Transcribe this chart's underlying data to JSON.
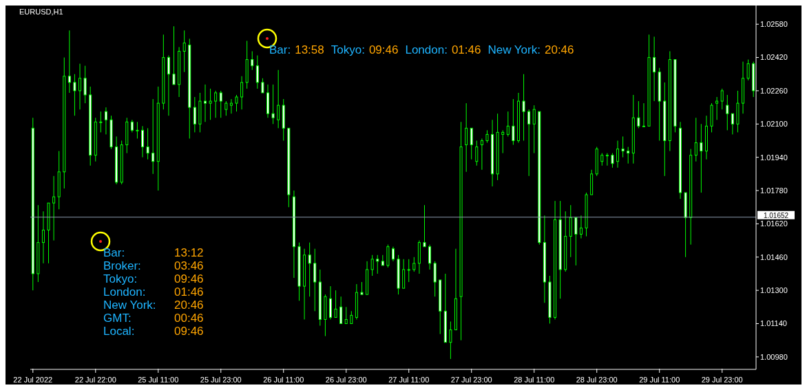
{
  "chart_data": {
    "type": "candlestick",
    "title": "EURUSD,H1",
    "color": "#00ff00",
    "categories": [
      "22 Jul 2022",
      null,
      null,
      null,
      null,
      null,
      null,
      null,
      null,
      null,
      null,
      null,
      "22 Jul 22:00",
      null,
      null,
      null,
      null,
      null,
      null,
      null,
      null,
      null,
      null,
      null,
      "25 Jul 11:00",
      null,
      null,
      null,
      null,
      null,
      null,
      null,
      null,
      null,
      null,
      null,
      "25 Jul 23:00",
      null,
      null,
      null,
      null,
      null,
      null,
      null,
      null,
      null,
      null,
      null,
      "26 Jul 11:00",
      null,
      null,
      null,
      null,
      null,
      null,
      null,
      null,
      null,
      null,
      null,
      "26 Jul 23:00",
      null,
      null,
      null,
      null,
      null,
      null,
      null,
      null,
      null,
      null,
      null,
      "27 Jul 11:00",
      null,
      null,
      null,
      null,
      null,
      null,
      null,
      null,
      null,
      null,
      null,
      "27 Jul 23:00",
      null,
      null,
      null,
      null,
      null,
      null,
      null,
      null,
      null,
      null,
      null,
      "28 Jul 11:00",
      null,
      null,
      null,
      null,
      null,
      null,
      null,
      null,
      null,
      null,
      null,
      "28 Jul 23:00",
      null,
      null,
      null,
      null,
      null,
      null,
      null,
      null,
      null,
      null,
      null,
      "29 Jul 11:00",
      null,
      null,
      null,
      null,
      null,
      null,
      null,
      null,
      null,
      null,
      null,
      "29 Jul 23:00",
      null,
      null,
      null,
      null,
      null,
      null
    ],
    "ohlc": [
      [
        1.0208,
        1.0213,
        1.013,
        1.0138
      ],
      [
        1.0138,
        1.0171,
        1.0134,
        1.0153
      ],
      [
        1.0153,
        1.0168,
        1.0143,
        1.0159
      ],
      [
        1.0159,
        1.0172,
        1.0143,
        1.0172
      ],
      [
        1.0172,
        1.0185,
        1.0154,
        1.0175
      ],
      [
        1.0175,
        1.0197,
        1.0169,
        1.0187
      ],
      [
        1.0187,
        1.0242,
        1.0179,
        1.0233
      ],
      [
        1.0233,
        1.0255,
        1.0225,
        1.023
      ],
      [
        1.023,
        1.0234,
        1.0214,
        1.0226
      ],
      [
        1.0226,
        1.0239,
        1.0217,
        1.0232
      ],
      [
        1.0232,
        1.0238,
        1.022,
        1.0224
      ],
      [
        1.0224,
        1.0228,
        1.019,
        1.0195
      ],
      [
        1.0195,
        1.0213,
        1.0192,
        1.0211
      ],
      [
        1.0211,
        1.0216,
        1.0206,
        1.0211
      ],
      [
        1.0216,
        1.0218,
        1.0205,
        1.0212
      ],
      [
        1.0212,
        1.0214,
        1.0198,
        1.0199
      ],
      [
        1.0199,
        1.0204,
        1.0181,
        1.0182
      ],
      [
        1.0182,
        1.0202,
        1.0181,
        1.02
      ],
      [
        1.02,
        1.0213,
        1.0196,
        1.0211
      ],
      [
        1.0211,
        1.0212,
        1.0206,
        1.0207
      ],
      [
        1.0207,
        1.0211,
        1.0203,
        1.0207
      ],
      [
        1.0207,
        1.0209,
        1.0194,
        1.0199
      ],
      [
        1.0199,
        1.0208,
        1.0193,
        1.0196
      ],
      [
        1.0196,
        1.0222,
        1.0186,
        1.0192
      ],
      [
        1.0192,
        1.0228,
        1.0178,
        1.022
      ],
      [
        1.022,
        1.0253,
        1.0217,
        1.0242
      ],
      [
        1.0242,
        1.0243,
        1.0214,
        1.0234
      ],
      [
        1.0234,
        1.0257,
        1.0229,
        1.0229
      ],
      [
        1.0229,
        1.0247,
        1.0223,
        1.0245
      ],
      [
        1.0245,
        1.0255,
        1.0235,
        1.0249
      ],
      [
        1.0248,
        1.0251,
        1.0203,
        1.0218
      ],
      [
        1.0218,
        1.0223,
        1.0206,
        1.021
      ],
      [
        1.021,
        1.0225,
        1.0206,
        1.0221
      ],
      [
        1.0221,
        1.0229,
        1.0211,
        1.022
      ],
      [
        1.022,
        1.0227,
        1.0212,
        1.0221
      ],
      [
        1.0221,
        1.0226,
        1.0213,
        1.0225
      ],
      [
        1.0225,
        1.0226,
        1.0213,
        1.0221
      ],
      [
        1.0217,
        1.0221,
        1.0214,
        1.022
      ],
      [
        1.0219,
        1.0222,
        1.0215,
        1.022
      ],
      [
        1.022,
        1.0224,
        1.0216,
        1.0223
      ],
      [
        1.0223,
        1.0233,
        1.0217,
        1.023
      ],
      [
        1.023,
        1.025,
        1.0227,
        1.0241
      ],
      [
        1.0241,
        1.0245,
        1.0236,
        1.0238
      ],
      [
        1.0238,
        1.0243,
        1.0227,
        1.023
      ],
      [
        1.023,
        1.0232,
        1.0225,
        1.0225
      ],
      [
        1.0225,
        1.0229,
        1.0213,
        1.0215
      ],
      [
        1.0215,
        1.0229,
        1.021,
        1.0213
      ],
      [
        1.0212,
        1.0236,
        1.0208,
        1.0219
      ],
      [
        1.0219,
        1.0222,
        1.0202,
        1.0208
      ],
      [
        1.0208,
        1.0208,
        1.017,
        1.0176
      ],
      [
        1.0175,
        1.0178,
        1.0136,
        1.0151
      ],
      [
        1.0151,
        1.0153,
        1.0125,
        1.0132
      ],
      [
        1.0132,
        1.015,
        1.0116,
        1.0147
      ],
      [
        1.0147,
        1.0153,
        1.0127,
        1.0143
      ],
      [
        1.0143,
        1.015,
        1.012,
        1.0134
      ],
      [
        1.0134,
        1.014,
        1.0113,
        1.0116
      ],
      [
        1.0116,
        1.0128,
        1.0108,
        1.0127
      ],
      [
        1.0126,
        1.0132,
        1.0116,
        1.0117
      ],
      [
        1.0117,
        1.013,
        1.0117,
        1.0121
      ],
      [
        1.0122,
        1.0127,
        1.0114,
        1.0114
      ],
      [
        1.0114,
        1.0122,
        1.0114,
        1.0116
      ],
      [
        1.0114,
        1.012,
        1.0114,
        1.0118
      ],
      [
        1.0117,
        1.0133,
        1.0116,
        1.0129
      ],
      [
        1.0129,
        1.0134,
        1.0128,
        1.0128
      ],
      [
        1.0128,
        1.0144,
        1.0128,
        1.014
      ],
      [
        1.014,
        1.0147,
        1.0137,
        1.0145
      ],
      [
        1.0145,
        1.0147,
        1.0138,
        1.0144
      ],
      [
        1.0144,
        1.0147,
        1.0142,
        1.0142
      ],
      [
        1.0142,
        1.0152,
        1.0141,
        1.0151
      ],
      [
        1.015,
        1.0151,
        1.0144,
        1.0145
      ],
      [
        1.0145,
        1.0147,
        1.0128,
        1.0131
      ],
      [
        1.0131,
        1.0145,
        1.0131,
        1.014
      ],
      [
        1.014,
        1.0145,
        1.0134,
        1.014
      ],
      [
        1.014,
        1.0146,
        1.0139,
        1.0143
      ],
      [
        1.0143,
        1.0154,
        1.0138,
        1.0153
      ],
      [
        1.0153,
        1.0171,
        1.0151,
        1.0151
      ],
      [
        1.0151,
        1.0152,
        1.014,
        1.0143
      ],
      [
        1.0143,
        1.0144,
        1.0127,
        1.0134
      ],
      [
        1.0135,
        1.0135,
        1.0109,
        1.012
      ],
      [
        1.012,
        1.0138,
        1.0105,
        1.0105
      ],
      [
        1.0105,
        1.0115,
        1.0097,
        1.0111
      ],
      [
        1.0111,
        1.015,
        1.0111,
        1.0126
      ],
      [
        1.0127,
        1.0211,
        1.0106,
        1.0199
      ],
      [
        1.02,
        1.022,
        1.0187,
        1.0208
      ],
      [
        1.0208,
        1.0208,
        1.0193,
        1.02
      ],
      [
        1.0192,
        1.0202,
        1.019,
        1.0199
      ],
      [
        1.02,
        1.0203,
        1.0188,
        1.0202
      ],
      [
        1.0202,
        1.0207,
        1.0201,
        1.0205
      ],
      [
        1.0205,
        1.0212,
        1.018,
        1.0186
      ],
      [
        1.0186,
        1.0215,
        1.0183,
        1.0206
      ],
      [
        1.0205,
        1.0207,
        1.0196,
        1.0206
      ],
      [
        1.0205,
        1.0216,
        1.0204,
        1.0209
      ],
      [
        1.0209,
        1.0222,
        1.02,
        1.0202
      ],
      [
        1.0202,
        1.0225,
        1.0201,
        1.0221
      ],
      [
        1.0221,
        1.0234,
        1.0202,
        1.0216
      ],
      [
        1.0216,
        1.0217,
        1.0185,
        1.021
      ],
      [
        1.021,
        1.0219,
        1.0196,
        1.0217
      ],
      [
        1.0216,
        1.0216,
        1.0152,
        1.0153
      ],
      [
        1.0153,
        1.0166,
        1.0124,
        1.0134
      ],
      [
        1.0134,
        1.0137,
        1.0114,
        1.0117
      ],
      [
        1.0117,
        1.0173,
        1.0116,
        1.0164
      ],
      [
        1.0164,
        1.0173,
        1.0126,
        1.014
      ],
      [
        1.014,
        1.0168,
        1.0139,
        1.0156
      ],
      [
        1.0156,
        1.0171,
        1.0146,
        1.0165
      ],
      [
        1.0165,
        1.0165,
        1.0142,
        1.0157
      ],
      [
        1.0157,
        1.0166,
        1.0155,
        1.016
      ],
      [
        1.016,
        1.0177,
        1.0156,
        1.0176
      ],
      [
        1.0176,
        1.0188,
        1.0176,
        1.0186
      ],
      [
        1.0186,
        1.0199,
        1.0185,
        1.0198
      ],
      [
        1.0192,
        1.0196,
        1.019,
        1.0195
      ],
      [
        1.0195,
        1.0196,
        1.019,
        1.0195
      ],
      [
        1.0195,
        1.0196,
        1.0189,
        1.0191
      ],
      [
        1.0192,
        1.0202,
        1.0189,
        1.0198
      ],
      [
        1.0198,
        1.0204,
        1.0194,
        1.0197
      ],
      [
        1.0197,
        1.0199,
        1.0191,
        1.0196
      ],
      [
        1.0196,
        1.0224,
        1.0191,
        1.0213
      ],
      [
        1.0213,
        1.0221,
        1.0208,
        1.0209
      ],
      [
        1.0209,
        1.022,
        1.0209,
        1.0209
      ],
      [
        1.0209,
        1.0253,
        1.0209,
        1.0242
      ],
      [
        1.0242,
        1.0252,
        1.0221,
        1.0235
      ],
      [
        1.0235,
        1.0237,
        1.0202,
        1.0221
      ],
      [
        1.0221,
        1.023,
        1.0185,
        1.0202
      ],
      [
        1.0202,
        1.0245,
        1.0197,
        1.0241
      ],
      [
        1.0241,
        1.0241,
        1.0206,
        1.0209
      ],
      [
        1.0208,
        1.0211,
        1.0174,
        1.0177
      ],
      [
        1.0177,
        1.0177,
        1.0146,
        1.0165
      ],
      [
        1.0165,
        1.0198,
        1.0152,
        1.0195
      ],
      [
        1.0195,
        1.0213,
        1.0192,
        1.0201
      ],
      [
        1.0201,
        1.021,
        1.0177,
        1.0197
      ],
      [
        1.0197,
        1.0214,
        1.0193,
        1.0209
      ],
      [
        1.0209,
        1.022,
        1.0206,
        1.0219
      ],
      [
        1.022,
        1.0223,
        1.0212,
        1.0221
      ],
      [
        1.0221,
        1.0227,
        1.0217,
        1.0226
      ],
      [
        1.0219,
        1.0224,
        1.0207,
        1.0215
      ],
      [
        1.0215,
        1.0215,
        1.0205,
        1.021
      ],
      [
        1.021,
        1.0226,
        1.0206,
        1.022
      ],
      [
        1.022,
        1.024,
        1.0215,
        1.0232
      ],
      [
        1.0232,
        1.0241,
        1.0231,
        1.0239
      ],
      [
        1.0239,
        1.024,
        1.0223,
        1.0226
      ]
    ],
    "ylim": [
      1.0092,
      1.0267
    ],
    "yticks": [
      {
        "value": 1.0098,
        "label": "1.00980"
      },
      {
        "value": 1.0114,
        "label": "1.01140"
      },
      {
        "value": 1.013,
        "label": "1.01300"
      },
      {
        "value": 1.0146,
        "label": "1.01460"
      },
      {
        "value": 1.0162,
        "label": "1.01620"
      },
      {
        "value": 1.0178,
        "label": "1.01780"
      },
      {
        "value": 1.0194,
        "label": "1.01940"
      },
      {
        "value": 1.021,
        "label": "1.02100"
      },
      {
        "value": 1.0226,
        "label": "1.02260"
      },
      {
        "value": 1.0242,
        "label": "1.02420"
      },
      {
        "value": 1.0258,
        "label": "1.02580"
      }
    ],
    "ref_lines": [
      {
        "axis": "y",
        "value": 1.01652,
        "label": "1.01652",
        "color": "#8c9bad"
      }
    ],
    "annotations": [
      "Bar:",
      "13:58",
      "Tokyo:",
      "09:46",
      "London:",
      "01:46",
      "New York:",
      "20:46",
      "Bar:",
      "13:12",
      "Broker:",
      "03:46",
      "Tokyo:",
      "09:46",
      "London:",
      "01:46",
      "New York:",
      "20:46",
      "GMT:",
      "00:46",
      "Local:",
      "09:46"
    ]
  }
}
